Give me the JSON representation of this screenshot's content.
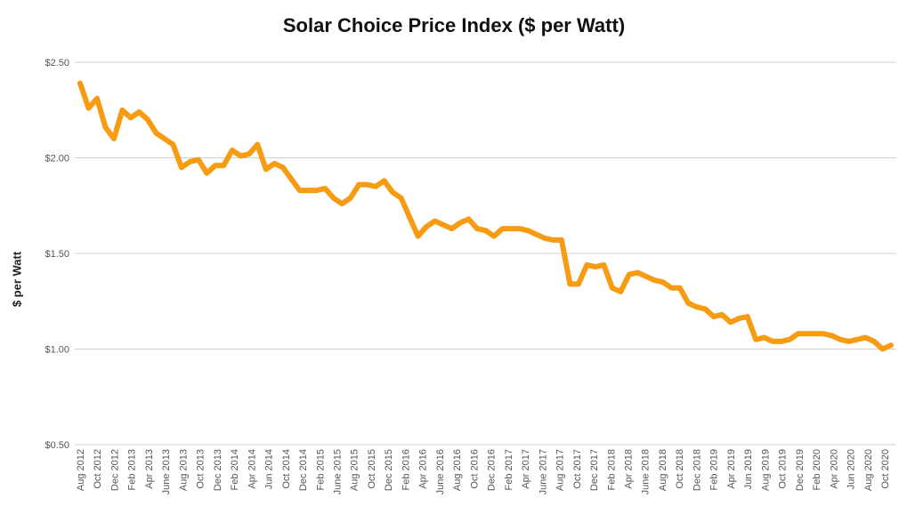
{
  "chart_data": {
    "type": "line",
    "title": "Solar Choice Price Index ($ per Watt)",
    "xlabel": "",
    "ylabel": "$ per Watt",
    "ylim": [
      0.5,
      2.5
    ],
    "y_ticks": [
      "$0.50",
      "$1.00",
      "$1.50",
      "$2.00",
      "$2.50"
    ],
    "y_tick_values": [
      0.5,
      1.0,
      1.5,
      2.0,
      2.5
    ],
    "grid": true,
    "color": "#F79B12",
    "x_tick_labels": [
      "Aug 2012",
      "Oct 2012",
      "Dec 2012",
      "Feb 2013",
      "Apr 2013",
      "June 2013",
      "Aug 2013",
      "Oct 2013",
      "Dec 2013",
      "Feb 2014",
      "Apr 2014",
      "Jun 2014",
      "Oct 2014",
      "Dec 2014",
      "Feb 2015",
      "June 2015",
      "Aug 2015",
      "Oct 2015",
      "Dec 2015",
      "Feb 2016",
      "Apr 2016",
      "June 2016",
      "Aug 2016",
      "Oct 2016",
      "Dec 2016",
      "Feb 2017",
      "Apr 2017",
      "June 2017",
      "Aug 2017",
      "Oct 2017",
      "Dec 2017",
      "Feb 2018",
      "Apr 2018",
      "June 2018",
      "Aug 2018",
      "Oct 2018",
      "Dec 2018",
      "Feb 2019",
      "Apr 2019",
      "Jun 2019",
      "Aug 2019",
      "Oct 2019",
      "Dec 2019",
      "Feb 2020",
      "Apr 2020",
      "Jun 2020",
      "Aug 2020",
      "Oct 2020"
    ],
    "series": [
      {
        "values": [
          2.39,
          2.26,
          2.31,
          2.16,
          2.1,
          2.25,
          2.21,
          2.24,
          2.2,
          2.13,
          2.1,
          2.07,
          1.95,
          1.98,
          1.99,
          1.92,
          1.96,
          1.96,
          2.04,
          2.01,
          2.02,
          2.07,
          1.94,
          1.97,
          1.95,
          1.89,
          1.83,
          1.83,
          1.83,
          1.84,
          1.79,
          1.76,
          1.79,
          1.86,
          1.86,
          1.85,
          1.88,
          1.82,
          1.79,
          1.69,
          1.59,
          1.64,
          1.67,
          1.65,
          1.63,
          1.66,
          1.68,
          1.63,
          1.62,
          1.59,
          1.63,
          1.63,
          1.63,
          1.62,
          1.6,
          1.58,
          1.57,
          1.57,
          1.34,
          1.34,
          1.44,
          1.43,
          1.44,
          1.32,
          1.3,
          1.39,
          1.4,
          1.38,
          1.36,
          1.35,
          1.32,
          1.32,
          1.24,
          1.22,
          1.21,
          1.17,
          1.18,
          1.14,
          1.16,
          1.17,
          1.05,
          1.06,
          1.04,
          1.04,
          1.05,
          1.08,
          1.08,
          1.08,
          1.08,
          1.07,
          1.05,
          1.04,
          1.05,
          1.06,
          1.04,
          1.0,
          1.02
        ]
      }
    ]
  }
}
